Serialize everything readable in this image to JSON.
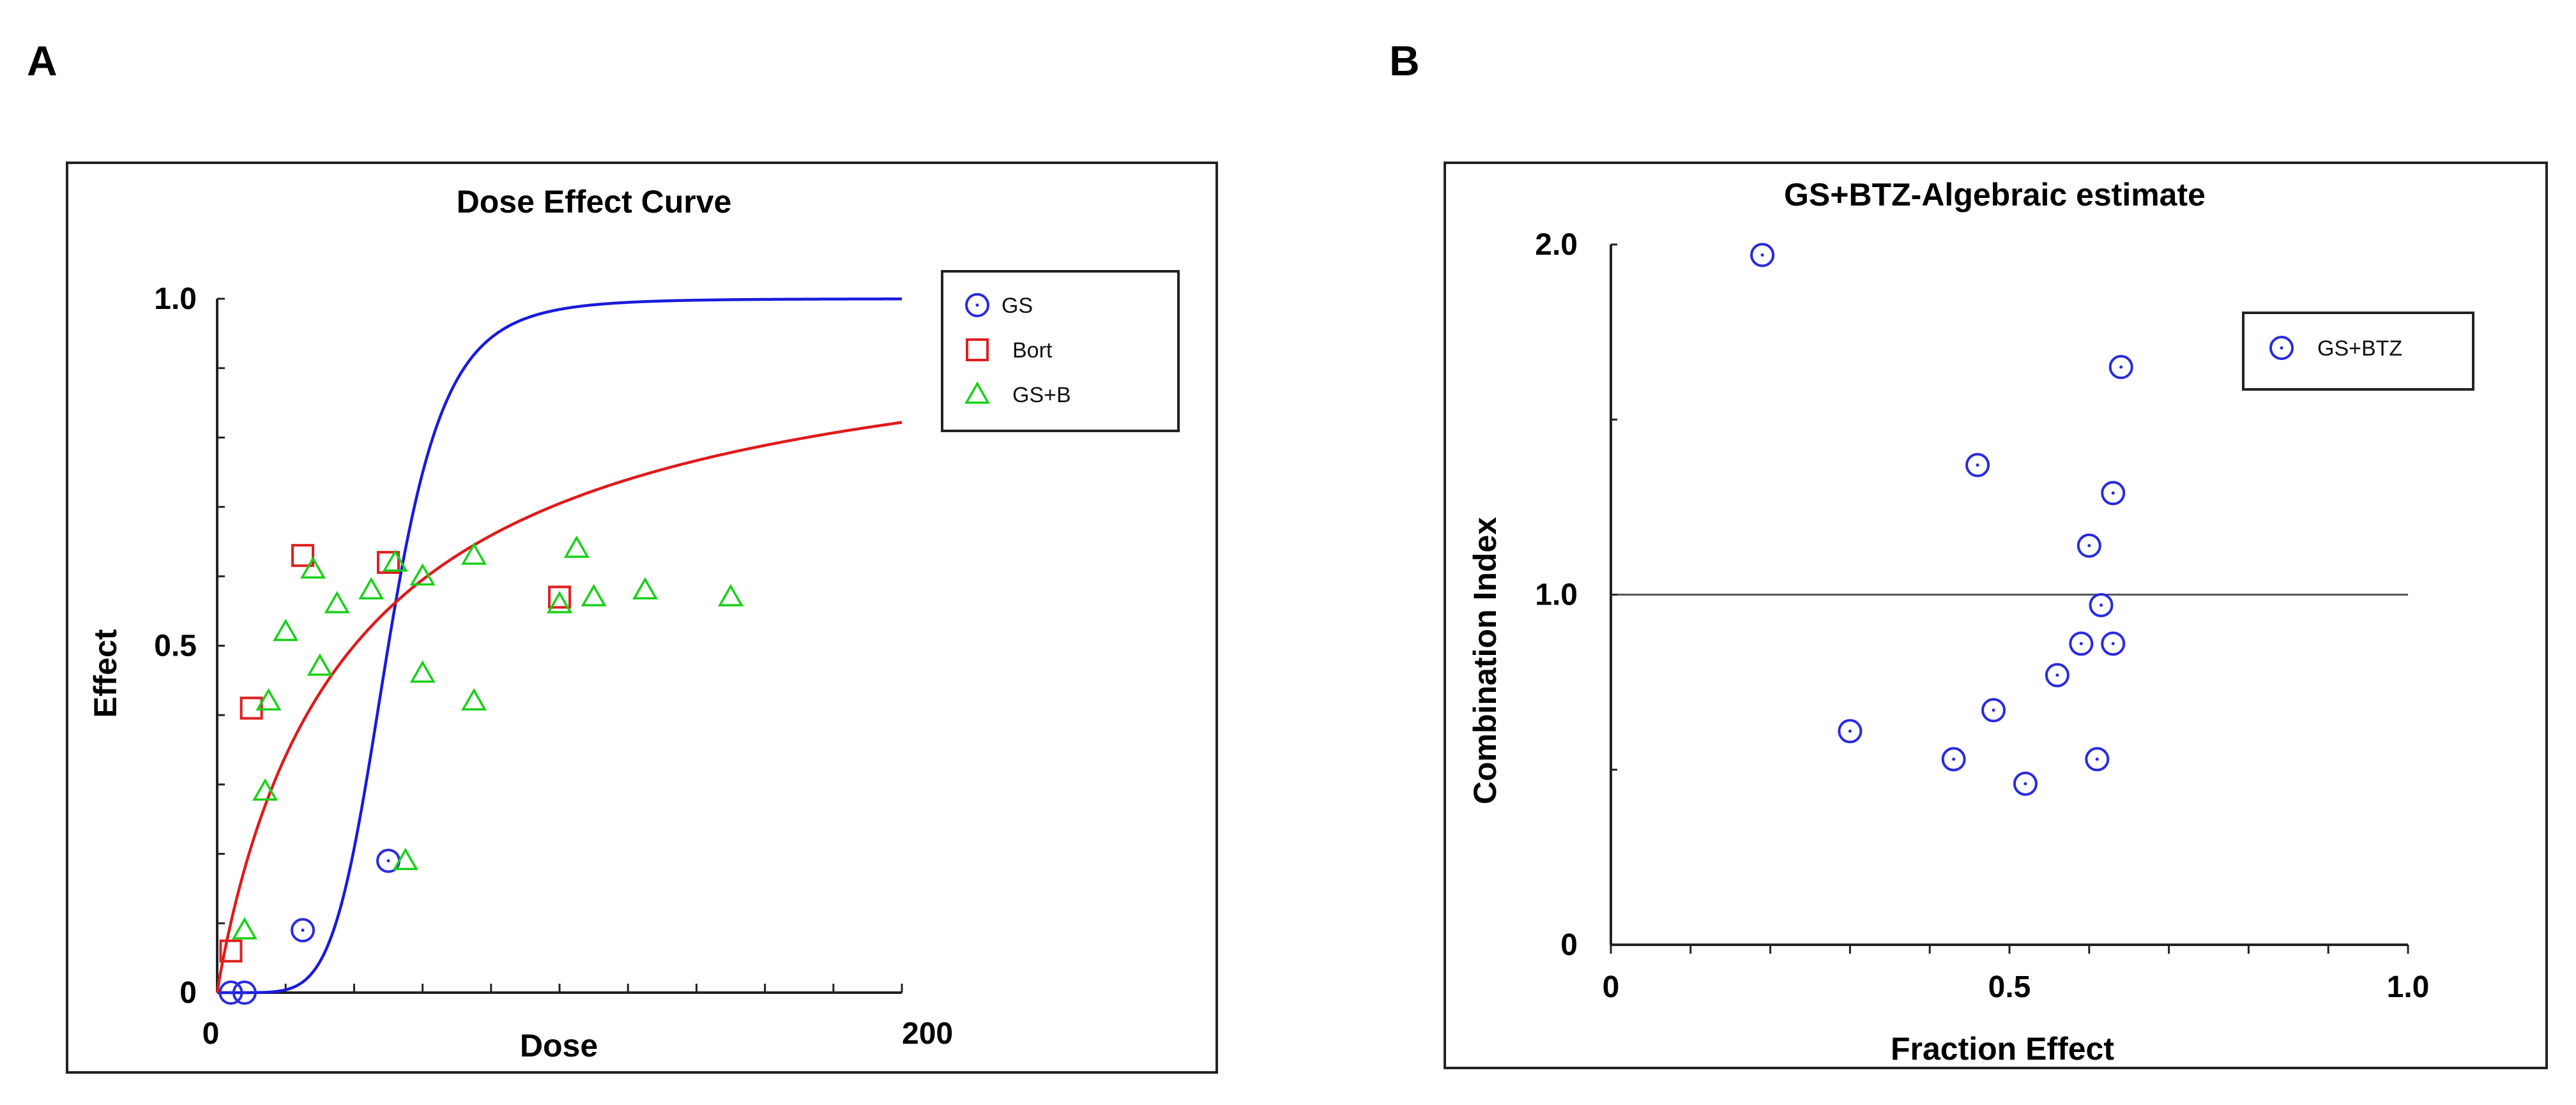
{
  "panels": {
    "a": {
      "letter": "A"
    },
    "b": {
      "letter": "B"
    }
  },
  "chart_data": [
    {
      "type": "scatter",
      "title": "Dose Effect Curve",
      "xlabel": "Dose",
      "ylabel": "Effect",
      "xlim": [
        0,
        200
      ],
      "ylim": [
        0,
        1.0
      ],
      "x_tick_labels": [
        {
          "value": 0,
          "label": "0"
        },
        {
          "value": 200,
          "label": "200"
        }
      ],
      "y_tick_labels": [
        {
          "value": 0,
          "label": "0"
        },
        {
          "value": 0.5,
          "label": "0.5"
        },
        {
          "value": 1.0,
          "label": "1.0"
        }
      ],
      "legend_position": "top-right",
      "curves": [
        {
          "name": "GS",
          "model": "median-effect",
          "dm": 50,
          "m": 6,
          "color": "#1a1adc"
        },
        {
          "name": "Bort",
          "model": "median-effect",
          "dm": 40,
          "m": 0.95,
          "color": "#e01a1a"
        }
      ],
      "series": [
        {
          "name": "GS",
          "marker": "circle",
          "color": "#2a2ae0",
          "points": [
            [
              4,
              0.0
            ],
            [
              8,
              0.0
            ],
            [
              25,
              0.09
            ],
            [
              50,
              0.19
            ]
          ]
        },
        {
          "name": "Bort",
          "marker": "square",
          "color": "#e02020",
          "points": [
            [
              4,
              0.06
            ],
            [
              10,
              0.41
            ],
            [
              25,
              0.63
            ],
            [
              50,
              0.62
            ],
            [
              100,
              0.57
            ]
          ]
        },
        {
          "name": "GS+B",
          "marker": "triangle",
          "color": "#18d018",
          "points": [
            [
              8,
              0.09
            ],
            [
              14,
              0.29
            ],
            [
              15,
              0.42
            ],
            [
              20,
              0.52
            ],
            [
              28,
              0.61
            ],
            [
              30,
              0.47
            ],
            [
              35,
              0.56
            ],
            [
              45,
              0.58
            ],
            [
              52,
              0.62
            ],
            [
              55,
              0.19
            ],
            [
              60,
              0.46
            ],
            [
              60,
              0.6
            ],
            [
              75,
              0.42
            ],
            [
              75,
              0.63
            ],
            [
              100,
              0.56
            ],
            [
              105,
              0.64
            ],
            [
              110,
              0.57
            ],
            [
              125,
              0.58
            ],
            [
              150,
              0.57
            ]
          ]
        }
      ]
    },
    {
      "type": "scatter",
      "title": "GS+BTZ-Algebraic  estimate",
      "xlabel": "Fraction Effect",
      "ylabel": "Combination Index",
      "xlim": [
        0,
        1.0
      ],
      "ylim": [
        0,
        2.0
      ],
      "reference_line": 1.0,
      "x_tick_labels": [
        {
          "value": 0,
          "label": "0"
        },
        {
          "value": 0.5,
          "label": "0.5"
        },
        {
          "value": 1.0,
          "label": "1.0"
        }
      ],
      "y_tick_labels": [
        {
          "value": 0,
          "label": "0"
        },
        {
          "value": 1.0,
          "label": "1.0"
        },
        {
          "value": 2.0,
          "label": "2.0"
        }
      ],
      "legend_position": "top-right",
      "series": [
        {
          "name": "GS+BTZ",
          "marker": "circle",
          "color": "#2a2ae0",
          "points": [
            [
              0.19,
              1.97
            ],
            [
              0.3,
              0.61
            ],
            [
              0.43,
              0.53
            ],
            [
              0.46,
              1.37
            ],
            [
              0.48,
              0.67
            ],
            [
              0.52,
              0.46
            ],
            [
              0.56,
              0.77
            ],
            [
              0.59,
              0.86
            ],
            [
              0.6,
              1.14
            ],
            [
              0.61,
              0.53
            ],
            [
              0.615,
              0.97
            ],
            [
              0.63,
              0.86
            ],
            [
              0.63,
              1.29
            ],
            [
              0.64,
              1.65
            ]
          ]
        }
      ]
    }
  ]
}
